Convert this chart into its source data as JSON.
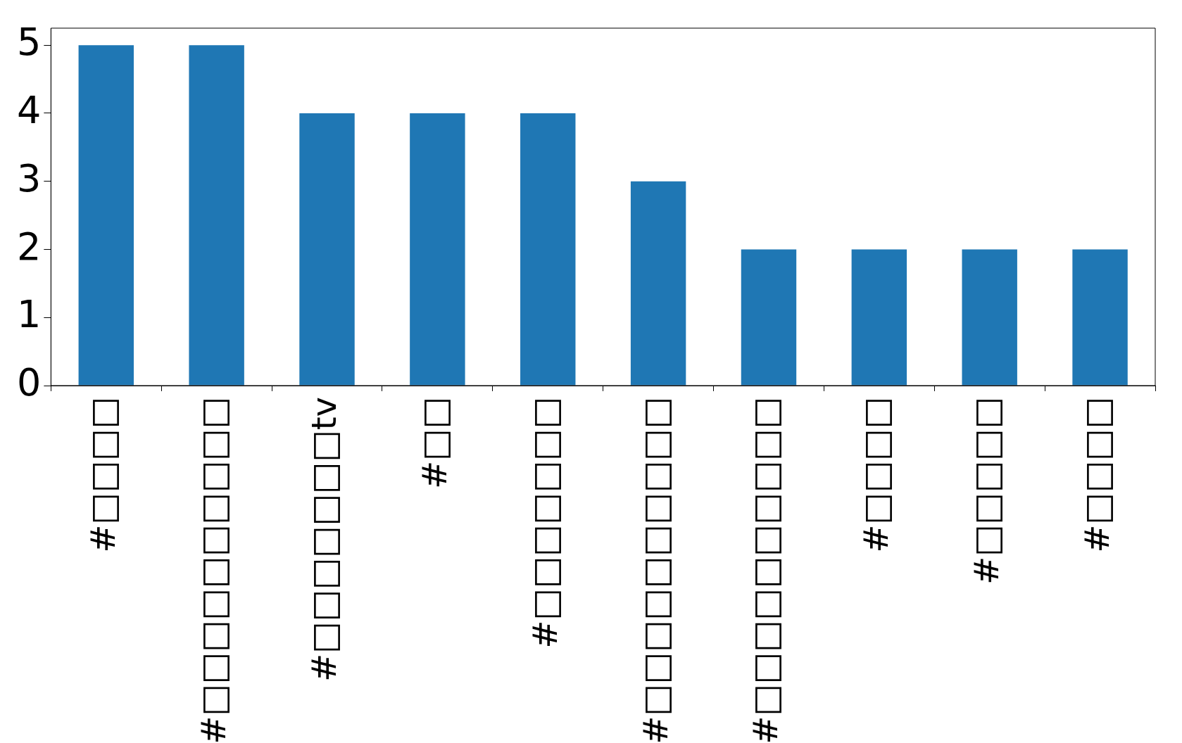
{
  "chart_data": {
    "type": "bar",
    "categories": [
      "#□□□□",
      "#□□□□□□□□□□",
      "#□□□□□□□tv",
      "#□□",
      "#□□□□□□□",
      "#□□□□□□□□□□",
      "#□□□□□□□□□□",
      "#□□□□",
      "#□□□□□",
      "#□□□□"
    ],
    "values": [
      5,
      5,
      4,
      4,
      4,
      3,
      2,
      2,
      2,
      2
    ],
    "color": "#1f77b4",
    "ylim": [
      0,
      5.25
    ],
    "yticks": [
      0,
      1,
      2,
      3,
      4,
      5
    ],
    "grid": false,
    "legend": false
  }
}
